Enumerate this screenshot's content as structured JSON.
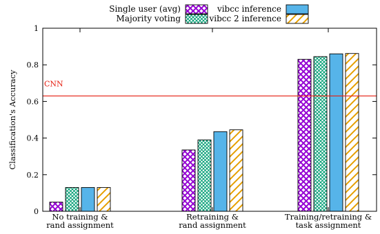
{
  "chart_data": {
    "type": "bar",
    "title": "",
    "xlabel": "",
    "ylabel": "Classification's Accuracy",
    "ylim": [
      0,
      1
    ],
    "yticks": [
      "0",
      "0.2",
      "0.4",
      "0.6",
      "0.8",
      "1"
    ],
    "grid": false,
    "legend_position": "top",
    "categories": [
      [
        "No training &",
        "rand assignment"
      ],
      [
        "Retraining &",
        "rand assignment"
      ],
      [
        "Training/retraining &",
        "task assignment"
      ]
    ],
    "series": [
      {
        "name": "Single user (avg)",
        "values": [
          0.05,
          0.335,
          0.83
        ],
        "color": "#9400d3",
        "pattern": "crosshatch"
      },
      {
        "name": "Majority voting",
        "values": [
          0.13,
          0.39,
          0.845
        ],
        "color": "#009e73",
        "pattern": "fine-crosshatch"
      },
      {
        "name": "vibcc inference",
        "values": [
          0.13,
          0.435,
          0.86
        ],
        "color": "#56b4e9",
        "pattern": "solid"
      },
      {
        "name": "vibcc 2 inference",
        "values": [
          0.13,
          0.445,
          0.862
        ],
        "color": "#e69f00",
        "pattern": "diagonal"
      }
    ],
    "reference_line": {
      "label": "CNN",
      "value": 0.63,
      "color": "#e51e10"
    }
  }
}
